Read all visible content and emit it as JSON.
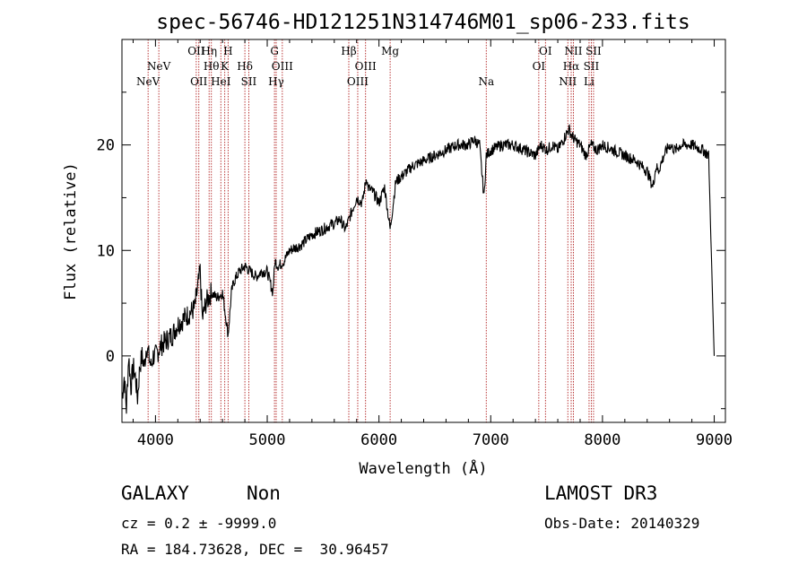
{
  "chart_data": {
    "type": "line",
    "title": "spec-56746-HD121251N314746M01_sp06-233.fits",
    "xlabel": "Wavelength (Å)",
    "ylabel": "Flux (relative)",
    "xlim": [
      3700,
      9100
    ],
    "ylim": [
      -6.3,
      30
    ],
    "xticks": [
      4000,
      5000,
      6000,
      7000,
      8000,
      9000
    ],
    "yticks": [
      0,
      10,
      20
    ],
    "grid": false,
    "series": [
      {
        "x": [
          3700,
          3720,
          3740,
          3760,
          3780,
          3800,
          3820,
          3840,
          3860,
          3880,
          3900,
          3920,
          3940,
          3960,
          3980,
          4000,
          4050,
          4100,
          4150,
          4200,
          4250,
          4300,
          4350,
          4400,
          4420,
          4450,
          4500,
          4550,
          4600,
          4650,
          4680,
          4700,
          4750,
          4800,
          4850,
          4900,
          4950,
          5000,
          5050,
          5070,
          5100,
          5150,
          5200,
          5300,
          5400,
          5500,
          5580,
          5600,
          5650,
          5700,
          5750,
          5800,
          5850,
          5890,
          5900,
          5950,
          6000,
          6050,
          6100,
          6150,
          6200,
          6300,
          6400,
          6500,
          6600,
          6700,
          6800,
          6850,
          6900,
          6940,
          6960,
          7000,
          7100,
          7200,
          7300,
          7400,
          7450,
          7500,
          7550,
          7600,
          7650,
          7700,
          7720,
          7750,
          7800,
          7850,
          7900,
          7950,
          8000,
          8100,
          8200,
          8300,
          8400,
          8450,
          8480,
          8500,
          8550,
          8600,
          8650,
          8700,
          8800,
          8900,
          8950,
          8990,
          9000
        ],
        "y": [
          -4,
          -2,
          -5,
          0,
          -3,
          -1,
          -2,
          -4,
          -1,
          0,
          -1,
          1,
          0,
          -1,
          0,
          0,
          1,
          1.5,
          2,
          3,
          3.5,
          4,
          4.5,
          8,
          3.5,
          5,
          6,
          5.5,
          6,
          2,
          6,
          7,
          8,
          8.5,
          8,
          7.5,
          8,
          8,
          6,
          9,
          8.5,
          9,
          10,
          10.5,
          11.5,
          12,
          12.5,
          12.5,
          13,
          12,
          13.5,
          15,
          14.5,
          17,
          16,
          15.5,
          14.5,
          16,
          12,
          16.5,
          17,
          18,
          18.5,
          19,
          19.5,
          20,
          20,
          20.5,
          20,
          15,
          19,
          19.5,
          20,
          20,
          19.5,
          19,
          20,
          19.5,
          20,
          19.5,
          20.5,
          21.5,
          21,
          20.5,
          20,
          19,
          20,
          19.5,
          20,
          19.5,
          19,
          18.5,
          17.5,
          16,
          18,
          17.5,
          19,
          20,
          19.5,
          20,
          20,
          19.5,
          19,
          3.5,
          0
        ]
      }
    ],
    "line_markers": [
      {
        "w": 3934,
        "label": "NeV",
        "row": 2
      },
      {
        "w": 4030,
        "label": "NeV",
        "row": 1
      },
      {
        "w": 4365,
        "label": "OII",
        "row": 0
      },
      {
        "w": 4388,
        "label": "OII",
        "row": 2
      },
      {
        "w": 4480,
        "label": "Hη",
        "row": 0
      },
      {
        "w": 4500,
        "label": "Hθ",
        "row": 1
      },
      {
        "w": 4585,
        "label": "HeI",
        "row": 2
      },
      {
        "w": 4650,
        "label": "H",
        "row": 0
      },
      {
        "w": 4620,
        "label": "K",
        "row": 1
      },
      {
        "w": 4800,
        "label": "Hδ",
        "row": 1
      },
      {
        "w": 4835,
        "label": "SII",
        "row": 2
      },
      {
        "w": 5065,
        "label": "G",
        "row": 0
      },
      {
        "w": 5080,
        "label": "Hγ",
        "row": 2
      },
      {
        "w": 5135,
        "label": "OIII",
        "row": 1
      },
      {
        "w": 5730,
        "label": "Hβ",
        "row": 0
      },
      {
        "w": 5880,
        "label": "OIII",
        "row": 1
      },
      {
        "w": 5810,
        "label": "OIII",
        "row": 2
      },
      {
        "w": 6100,
        "label": "Mg",
        "row": 0
      },
      {
        "w": 6960,
        "label": "Na",
        "row": 2
      },
      {
        "w": 7490,
        "label": "OI",
        "row": 0
      },
      {
        "w": 7430,
        "label": "OI",
        "row": 1
      },
      {
        "w": 7740,
        "label": "NII",
        "row": 0
      },
      {
        "w": 7720,
        "label": "Hα",
        "row": 1
      },
      {
        "w": 7690,
        "label": "NII",
        "row": 2
      },
      {
        "w": 7920,
        "label": "SII",
        "row": 0
      },
      {
        "w": 7900,
        "label": "SII",
        "row": 1
      },
      {
        "w": 7880,
        "label": "Li",
        "row": 2
      }
    ],
    "marker_color": "#b22222"
  },
  "info": {
    "class_type": "GALAXY",
    "subclass": "Non",
    "survey": "LAMOST DR3",
    "cz_line": "cz = 0.2 ± -9999.0",
    "obs_date": "Obs-Date: 20140329",
    "radec_line": "RA = 184.73628, DEC =  30.96457"
  }
}
